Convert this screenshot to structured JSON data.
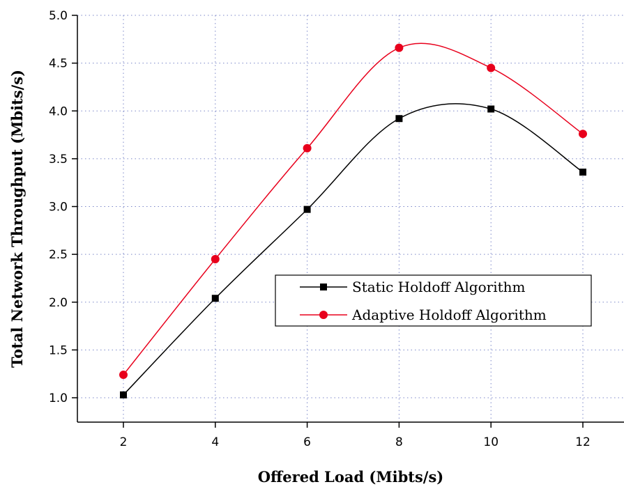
{
  "chart_data": {
    "type": "line",
    "title": "",
    "xlabel": "Offered Load (Mibts/s)",
    "ylabel": "Total Network Throughput (Mbits/s)",
    "x": [
      2,
      4,
      6,
      8,
      10,
      12
    ],
    "xlim": [
      1,
      13
    ],
    "ylim": [
      0.75,
      5.0
    ],
    "x_ticks": [
      "2",
      "4",
      "6",
      "8",
      "10",
      "12"
    ],
    "y_ticks": [
      "1.0",
      "1.5",
      "2.0",
      "2.5",
      "3.0",
      "3.5",
      "4.0",
      "4.5",
      "5.0"
    ],
    "grid": true,
    "legend_position": "center-right",
    "series": [
      {
        "name": "Static Holdoff Algorithm",
        "values": [
          1.03,
          2.04,
          2.97,
          3.92,
          4.02,
          3.36
        ],
        "color": "#000000",
        "marker": "square"
      },
      {
        "name": "Adaptive Holdoff Algorithm",
        "values": [
          1.24,
          2.45,
          3.61,
          4.66,
          4.45,
          3.76
        ],
        "color": "#e8001c",
        "marker": "circle"
      }
    ]
  }
}
